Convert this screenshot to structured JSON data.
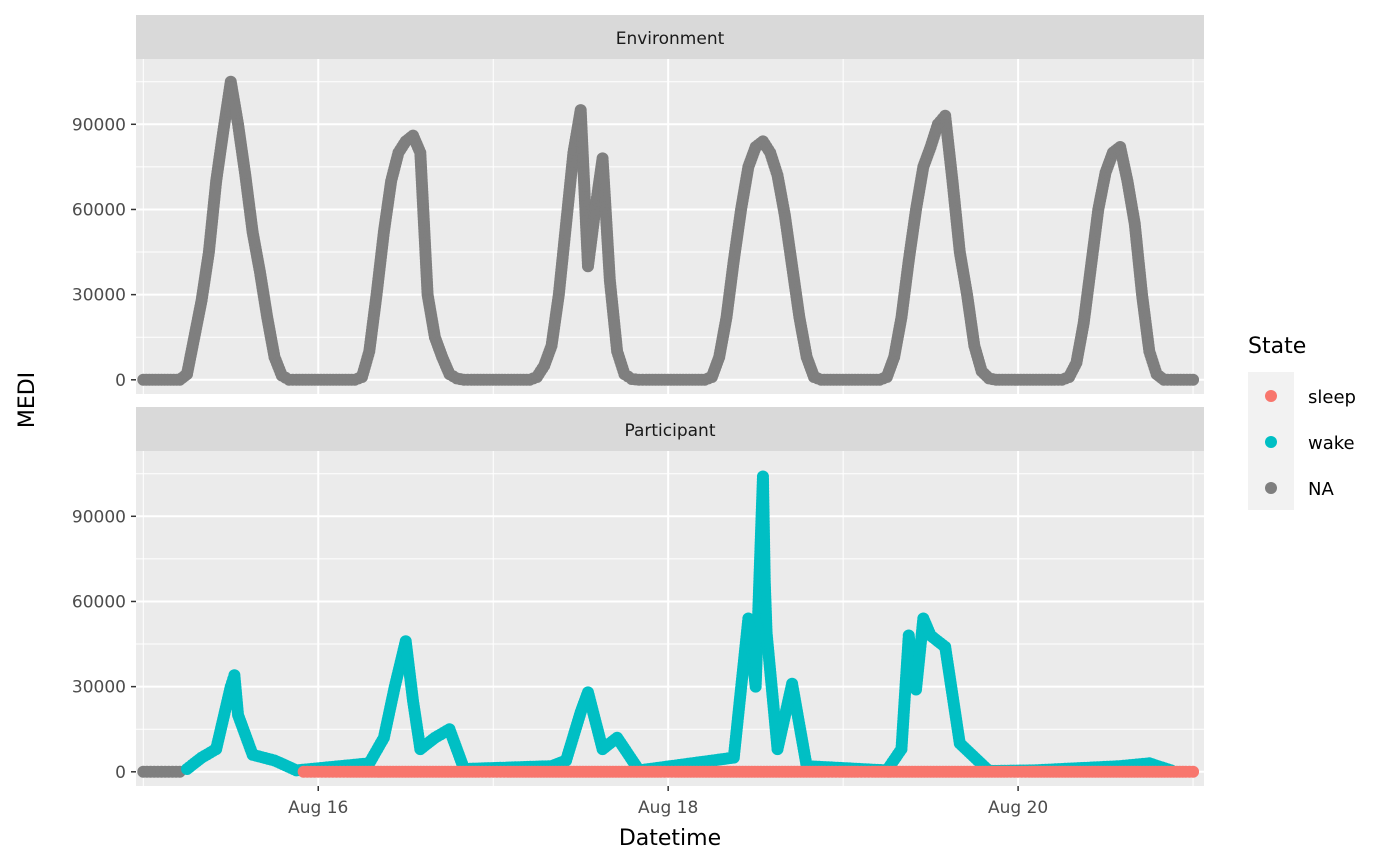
{
  "chart_data": {
    "type": "scatter",
    "xlabel": "Datetime",
    "ylabel": "MEDI",
    "x_ticks": [
      "Aug 16",
      "Aug 18",
      "Aug 20"
    ],
    "x_tick_values": [
      "2023-08-16 00:00",
      "2023-08-18 00:00",
      "2023-08-20 00:00"
    ],
    "xlim": [
      "2023-08-14 23:00",
      "2023-08-21 01:30"
    ],
    "x_range_data": [
      "2023-08-15 00:00",
      "2023-08-21 00:00"
    ],
    "y_ticks": [
      0,
      30000,
      60000,
      90000
    ],
    "y_tick_labels": [
      "0",
      "30000",
      "60000",
      "90000"
    ],
    "ylim": [
      -5000,
      113000
    ],
    "grid": true,
    "legend": {
      "title": "State",
      "position": "right",
      "entries": [
        {
          "label": "sleep",
          "color": "#F8766D"
        },
        {
          "label": "wake",
          "color": "#00BFC4"
        },
        {
          "label": "NA",
          "color": "#7F7F7F"
        }
      ]
    },
    "panels": [
      {
        "label": "Environment",
        "series": [
          {
            "state": "NA",
            "x": [
              "2023-08-15 00:00",
              "2023-08-15 05:00",
              "2023-08-15 06:00",
              "2023-08-15 07:00",
              "2023-08-15 08:00",
              "2023-08-15 09:00",
              "2023-08-15 10:00",
              "2023-08-15 11:00",
              "2023-08-15 12:00",
              "2023-08-15 13:00",
              "2023-08-15 14:00",
              "2023-08-15 15:00",
              "2023-08-15 16:00",
              "2023-08-15 17:00",
              "2023-08-15 18:00",
              "2023-08-15 19:00",
              "2023-08-15 20:00",
              "2023-08-15 21:00",
              "2023-08-16 05:00",
              "2023-08-16 06:00",
              "2023-08-16 07:00",
              "2023-08-16 08:00",
              "2023-08-16 09:00",
              "2023-08-16 10:00",
              "2023-08-16 11:00",
              "2023-08-16 12:00",
              "2023-08-16 13:00",
              "2023-08-16 14:00",
              "2023-08-16 15:00",
              "2023-08-16 16:00",
              "2023-08-16 17:00",
              "2023-08-16 18:00",
              "2023-08-16 19:00",
              "2023-08-16 20:00",
              "2023-08-16 21:00",
              "2023-08-17 05:00",
              "2023-08-17 06:00",
              "2023-08-17 07:00",
              "2023-08-17 08:00",
              "2023-08-17 09:00",
              "2023-08-17 10:00",
              "2023-08-17 11:00",
              "2023-08-17 12:00",
              "2023-08-17 13:00",
              "2023-08-17 14:00",
              "2023-08-17 15:00",
              "2023-08-17 16:00",
              "2023-08-17 17:00",
              "2023-08-17 18:00",
              "2023-08-17 19:00",
              "2023-08-17 20:00",
              "2023-08-17 21:00",
              "2023-08-18 05:00",
              "2023-08-18 06:00",
              "2023-08-18 07:00",
              "2023-08-18 08:00",
              "2023-08-18 09:00",
              "2023-08-18 10:00",
              "2023-08-18 11:00",
              "2023-08-18 12:00",
              "2023-08-18 13:00",
              "2023-08-18 14:00",
              "2023-08-18 15:00",
              "2023-08-18 16:00",
              "2023-08-18 17:00",
              "2023-08-18 18:00",
              "2023-08-18 19:00",
              "2023-08-18 20:00",
              "2023-08-18 21:00",
              "2023-08-19 05:00",
              "2023-08-19 06:00",
              "2023-08-19 07:00",
              "2023-08-19 08:00",
              "2023-08-19 09:00",
              "2023-08-19 10:00",
              "2023-08-19 11:00",
              "2023-08-19 12:00",
              "2023-08-19 13:00",
              "2023-08-19 14:00",
              "2023-08-19 15:00",
              "2023-08-19 16:00",
              "2023-08-19 17:00",
              "2023-08-19 18:00",
              "2023-08-19 19:00",
              "2023-08-19 20:00",
              "2023-08-19 21:00",
              "2023-08-20 05:00",
              "2023-08-20 06:00",
              "2023-08-20 07:00",
              "2023-08-20 08:00",
              "2023-08-20 09:00",
              "2023-08-20 10:00",
              "2023-08-20 11:00",
              "2023-08-20 12:00",
              "2023-08-20 13:00",
              "2023-08-20 14:00",
              "2023-08-20 15:00",
              "2023-08-20 16:00",
              "2023-08-20 17:00",
              "2023-08-20 18:00",
              "2023-08-20 19:00",
              "2023-08-20 20:00",
              "2023-08-20 21:00",
              "2023-08-21 00:00"
            ],
            "y": [
              0,
              0,
              2000,
              15000,
              28000,
              45000,
              70000,
              88000,
              105000,
              90000,
              72000,
              52000,
              38000,
              22000,
              8000,
              1500,
              0,
              0,
              0,
              1000,
              10000,
              30000,
              52000,
              70000,
              80000,
              84000,
              86000,
              80000,
              30000,
              15000,
              8000,
              2000,
              500,
              0,
              0,
              0,
              1000,
              5000,
              12000,
              30000,
              55000,
              80000,
              95000,
              40000,
              60000,
              78000,
              35000,
              10000,
              2000,
              300,
              0,
              0,
              0,
              1000,
              8000,
              22000,
              42000,
              60000,
              75000,
              82000,
              84000,
              80000,
              72000,
              58000,
              40000,
              22000,
              8000,
              1000,
              0,
              0,
              1000,
              8000,
              22000,
              42000,
              60000,
              75000,
              82000,
              90000,
              93000,
              70000,
              45000,
              30000,
              12000,
              3000,
              500,
              0,
              0,
              0,
              1000,
              6000,
              20000,
              40000,
              60000,
              73000,
              80000,
              82000,
              70000,
              55000,
              30000,
              10000,
              2000,
              0,
              0,
              0
            ]
          }
        ]
      },
      {
        "label": "Participant",
        "series": [
          {
            "state": "NA",
            "x": [
              "2023-08-15 00:00",
              "2023-08-15 02:00",
              "2023-08-15 04:00",
              "2023-08-15 05:00"
            ],
            "y": [
              0,
              0,
              0,
              0
            ]
          },
          {
            "state": "wake",
            "x": [
              "2023-08-15 06:00",
              "2023-08-15 08:00",
              "2023-08-15 10:00",
              "2023-08-15 12:00",
              "2023-08-15 12:30",
              "2023-08-15 13:00",
              "2023-08-15 15:00",
              "2023-08-15 18:00",
              "2023-08-15 21:00",
              "2023-08-16 07:00",
              "2023-08-16 09:00",
              "2023-08-16 10:30",
              "2023-08-16 12:00",
              "2023-08-16 13:00",
              "2023-08-16 14:00",
              "2023-08-16 16:00",
              "2023-08-16 18:00",
              "2023-08-16 20:00",
              "2023-08-17 08:00",
              "2023-08-17 10:00",
              "2023-08-17 12:00",
              "2023-08-17 13:00",
              "2023-08-17 15:00",
              "2023-08-17 17:00",
              "2023-08-17 20:00",
              "2023-08-18 09:00",
              "2023-08-18 11:00",
              "2023-08-18 12:00",
              "2023-08-18 13:00",
              "2023-08-18 13:15",
              "2023-08-18 13:30",
              "2023-08-18 15:00",
              "2023-08-18 17:00",
              "2023-08-18 19:00",
              "2023-08-19 06:00",
              "2023-08-19 08:00",
              "2023-08-19 09:00",
              "2023-08-19 10:00",
              "2023-08-19 11:00",
              "2023-08-19 12:00",
              "2023-08-19 14:00",
              "2023-08-19 16:00",
              "2023-08-19 20:00",
              "2023-08-20 02:00",
              "2023-08-20 06:00",
              "2023-08-20 10:00",
              "2023-08-20 14:00",
              "2023-08-20 18:00",
              "2023-08-20 21:00"
            ],
            "y": [
              1000,
              5000,
              8000,
              30000,
              34000,
              20000,
              6000,
              4000,
              500,
              3000,
              12000,
              30000,
              46000,
              25000,
              8000,
              12000,
              15000,
              1000,
              2000,
              4000,
              21000,
              28000,
              8000,
              12000,
              500,
              5000,
              54000,
              30000,
              104000,
              67000,
              49000,
              8000,
              31000,
              2000,
              500,
              8000,
              48000,
              29000,
              54000,
              48000,
              44000,
              10000,
              300,
              500,
              1000,
              1500,
              2000,
              3000,
              500
            ]
          },
          {
            "state": "sleep",
            "x": [
              "2023-08-15 22:00",
              "2023-08-16 00:00",
              "2023-08-16 02:00",
              "2023-08-16 04:00",
              "2023-08-16 22:00",
              "2023-08-17 00:00",
              "2023-08-17 02:00",
              "2023-08-17 23:00",
              "2023-08-18 01:00",
              "2023-08-18 21:30",
              "2023-08-18 23:30",
              "2023-08-19 02:00",
              "2023-08-19 04:00",
              "2023-08-19 22:30",
              "2023-08-20 00:00",
              "2023-08-20 01:30",
              "2023-08-20 23:00",
              "2023-08-21 00:00"
            ],
            "y": [
              0,
              0,
              0,
              0,
              0,
              0,
              0,
              0,
              0,
              0,
              0,
              0,
              0,
              0,
              0,
              0,
              0,
              0
            ]
          }
        ]
      }
    ]
  }
}
